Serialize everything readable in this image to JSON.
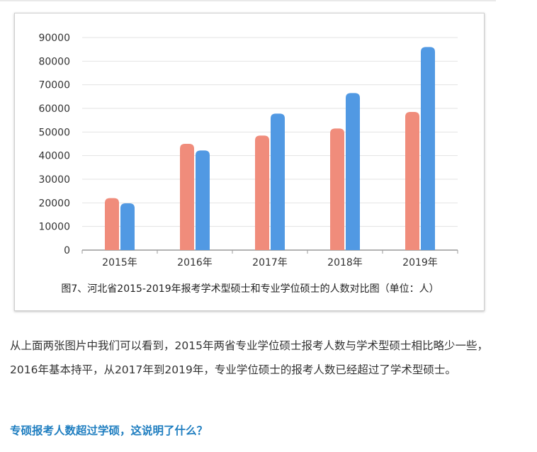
{
  "chart_data": {
    "type": "bar",
    "categories": [
      "2015年",
      "2016年",
      "2017年",
      "2018年",
      "2019年"
    ],
    "series": [
      {
        "values": [
          22000,
          45000,
          48500,
          51500,
          58500
        ],
        "color": "#f08c7b"
      },
      {
        "values": [
          19800,
          42200,
          57800,
          66500,
          86000
        ],
        "color": "#5199e3"
      }
    ],
    "y_ticks": [
      "0",
      "10000",
      "20000",
      "30000",
      "40000",
      "50000",
      "60000",
      "70000",
      "80000",
      "90000"
    ],
    "ylim": [
      0,
      90000
    ],
    "grid": true,
    "caption": "图7、河北省2015-2019年报考学术型硕士和专业学位硕士的人数对比图（单位：人）"
  },
  "article": {
    "paragraph": "从上面两张图片中我们可以看到，2015年两省专业学位硕士报考人数与学术型硕士相比略少一些，2016年基本持平，从2017年到2019年，专业学位硕士的报考人数已经超过了学术型硕士。",
    "question": "专硕报考人数超过学硕，这说明了什么？"
  }
}
